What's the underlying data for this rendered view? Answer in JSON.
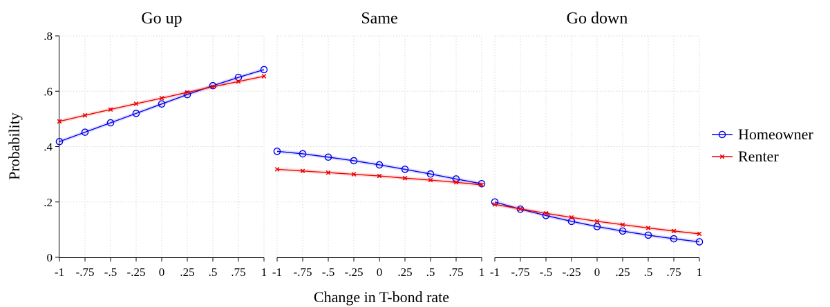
{
  "chart_data": {
    "type": "line",
    "panels": [
      "Go up",
      "Same",
      "Go down"
    ],
    "x": [
      -1,
      -0.75,
      -0.5,
      -0.25,
      0,
      0.25,
      0.5,
      0.75,
      1
    ],
    "x_tick_labels": [
      "-1",
      "-.75",
      "-.5",
      "-.25",
      "0",
      ".25",
      ".5",
      ".75",
      "1"
    ],
    "y_ticks": [
      0,
      0.2,
      0.4,
      0.6,
      0.8
    ],
    "y_tick_labels": [
      "0",
      ".2",
      ".4",
      ".6",
      ".8"
    ],
    "ylim": [
      0,
      0.8
    ],
    "xlim": [
      -1,
      1
    ],
    "xlabel": "Change in T-bond rate",
    "ylabel": "Probability",
    "grid": true,
    "legend_position": "right",
    "series": [
      {
        "name": "Homeowner",
        "color": "#0000ee",
        "marker": "circle",
        "values": [
          [
            0.418,
            0.452,
            0.486,
            0.52,
            0.554,
            0.588,
            0.62,
            0.65,
            0.678
          ],
          [
            0.383,
            0.374,
            0.362,
            0.349,
            0.334,
            0.318,
            0.301,
            0.283,
            0.266
          ],
          [
            0.2,
            0.174,
            0.151,
            0.13,
            0.111,
            0.095,
            0.08,
            0.067,
            0.056
          ]
        ]
      },
      {
        "name": "Renter",
        "color": "#ee0000",
        "marker": "x",
        "values": [
          [
            0.491,
            0.513,
            0.534,
            0.555,
            0.575,
            0.596,
            0.616,
            0.635,
            0.654
          ],
          [
            0.318,
            0.312,
            0.306,
            0.3,
            0.294,
            0.286,
            0.279,
            0.271,
            0.262
          ],
          [
            0.191,
            0.175,
            0.159,
            0.144,
            0.13,
            0.118,
            0.106,
            0.095,
            0.085
          ]
        ]
      }
    ]
  }
}
